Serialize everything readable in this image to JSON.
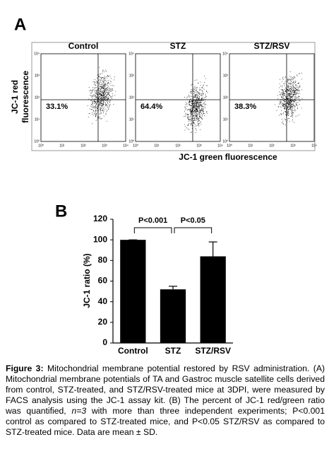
{
  "panel_a": {
    "label": "A",
    "y_label": [
      "JC-1 red",
      "fluorescence"
    ],
    "x_label": "JC-1 green fluorescence",
    "xlim": [
      1,
      10000
    ],
    "ylim": [
      1,
      10000
    ],
    "log_scale": true,
    "xticks": [
      {
        "value": 1,
        "label": "10⁰"
      },
      {
        "value": 10,
        "label": "10¹"
      },
      {
        "value": 100,
        "label": "10²"
      },
      {
        "value": 1000,
        "label": "10³"
      },
      {
        "value": 10000,
        "label": "10⁴"
      }
    ],
    "yticks": [
      {
        "value": 1,
        "label": "10⁰"
      },
      {
        "value": 10,
        "label": "10¹"
      },
      {
        "value": 100,
        "label": "10²"
      },
      {
        "value": 1000,
        "label": "10³"
      },
      {
        "value": 10000,
        "label": "10⁴"
      }
    ],
    "gate_x": 500,
    "gate_y": 80,
    "plots": [
      {
        "title": "Control",
        "percent": "33.1%"
      },
      {
        "title": "STZ",
        "percent": "64.4%"
      },
      {
        "title": "STZ/RSV",
        "percent": "38.3%"
      }
    ]
  },
  "chart_data": {
    "type": "bar",
    "label": "B",
    "y_label": "JC-1 ratio (%)",
    "categories": [
      "Control",
      "STZ",
      "STZ/RSV"
    ],
    "values": [
      100,
      52,
      84
    ],
    "errors": [
      0,
      3,
      14
    ],
    "color": "#000000",
    "ylim": [
      0,
      120
    ],
    "yticks": [
      0,
      20,
      40,
      60,
      80,
      100,
      120
    ],
    "annotations": [
      "P<0.001",
      "P<0.05"
    ]
  },
  "caption": {
    "label": "Figure 3:",
    "text_before": " Mitochondrial membrane potential restored by RSV administration. (A) Mitochondrial membrane potentials of TA and Gastroc muscle satellite cells derived from control, STZ-treated, and STZ/RSV-treated mice at 3DPI, were measured by FACS analysis using the JC-1 assay kit. (B) The percent of JC-1 red/green ratio was quantified, ",
    "italic": "n=3",
    "text_after": " with more than three independent experiments; P<0.001 control as compared to STZ-treated mice, and P<0.05 STZ/RSV as compared to STZ-treated mice. Data are mean ± SD."
  }
}
